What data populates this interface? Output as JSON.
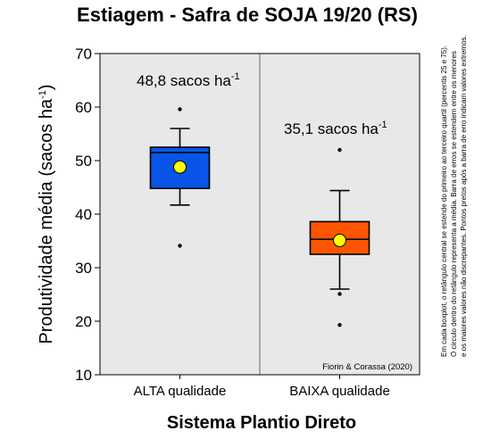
{
  "chart_data": {
    "type": "boxplot",
    "title": "Estiagem - Safra de SOJA 19/20 (RS)",
    "xlabel": "Sistema Plantio Direto",
    "ylabel": "Produtividade média (sacos ha",
    "ylabel_sup": "-1",
    "ylabel_close": ")",
    "ylim": [
      10,
      70
    ],
    "yticks": [
      "10",
      "20",
      "30",
      "40",
      "50",
      "60",
      "70"
    ],
    "categories": [
      "ALTA qualidade",
      "BAIXA qualidade"
    ],
    "boxes": [
      {
        "category": "ALTA qualidade",
        "q1": 44.8,
        "median": 51.5,
        "q3": 52.5,
        "whisker_low": 41.7,
        "whisker_high": 56.0,
        "mean": 48.8,
        "outliers": [
          59.6,
          34.1
        ],
        "color": "#0a55e8"
      },
      {
        "category": "BAIXA qualidade",
        "q1": 32.5,
        "median": 35.3,
        "q3": 38.6,
        "whisker_low": 26.0,
        "whisker_high": 44.4,
        "mean": 35.1,
        "outliers": [
          52.0,
          25.1,
          19.3
        ],
        "color": "#ff5500"
      }
    ],
    "mean_labels": [
      {
        "text": "48,8 sacos ha",
        "sup": "-1"
      },
      {
        "text": "35,1 sacos ha",
        "sup": "-1"
      }
    ],
    "mean_marker_color": "#ffff00",
    "background_color": "#e8e8e8",
    "grid": false,
    "credit": "Fiorin & Corassa (2020)",
    "side_note": [
      "Em cada boxplot, o retângulo central se estende do primeiro ao terceiro quartil (percentis 25 e 75).",
      "O círculo dentro do retângulo representa a média. Barra de erros se estendem entre os menores",
      "e os maiores valores não discrepantes. Pontos pretos após a barra de erro indicam valores extremos."
    ]
  }
}
